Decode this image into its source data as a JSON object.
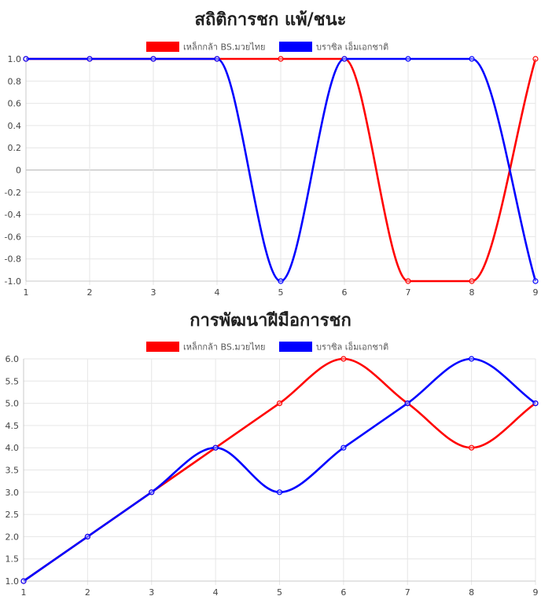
{
  "chart_data": [
    {
      "type": "line",
      "title": "สถิติการชก แพ้/ชนะ",
      "xlabel": "",
      "ylabel": "",
      "x": [
        1,
        2,
        3,
        4,
        5,
        6,
        7,
        8,
        9
      ],
      "ylim": [
        -1.0,
        1.0
      ],
      "y_ticks": [
        "1.0",
        "0.8",
        "0.6",
        "0.4",
        "0.2",
        "0",
        "-0.2",
        "-0.4",
        "-0.6",
        "-0.8",
        "-1.0"
      ],
      "grid": true,
      "legend_position": "top",
      "series": [
        {
          "name": "เหล็กกล้า BS.มวยไทย",
          "color": "#ff0000",
          "values": [
            1,
            1,
            1,
            1,
            1,
            1,
            -1,
            -1,
            1
          ]
        },
        {
          "name": "บราซิล เอ็มเอกชาติ",
          "color": "#0000ff",
          "values": [
            1,
            1,
            1,
            1,
            -1,
            1,
            1,
            1,
            -1
          ]
        }
      ]
    },
    {
      "type": "line",
      "title": "การพัฒนาฝีมือการชก",
      "xlabel": "",
      "ylabel": "",
      "x": [
        1,
        2,
        3,
        4,
        5,
        6,
        7,
        8,
        9
      ],
      "ylim": [
        1.0,
        6.0
      ],
      "y_ticks": [
        "6.0",
        "5.5",
        "5.0",
        "4.5",
        "4.0",
        "3.5",
        "3.0",
        "2.5",
        "2.0",
        "1.5",
        "1.0"
      ],
      "grid": true,
      "legend_position": "top",
      "series": [
        {
          "name": "เหล็กกล้า BS.มวยไทย",
          "color": "#ff0000",
          "values": [
            1,
            2,
            3,
            4,
            5,
            6,
            5,
            4,
            5
          ]
        },
        {
          "name": "บราซิล เอ็มเอกชาติ",
          "color": "#0000ff",
          "values": [
            1,
            2,
            3,
            4,
            3,
            4,
            5,
            6,
            5
          ]
        }
      ]
    }
  ]
}
